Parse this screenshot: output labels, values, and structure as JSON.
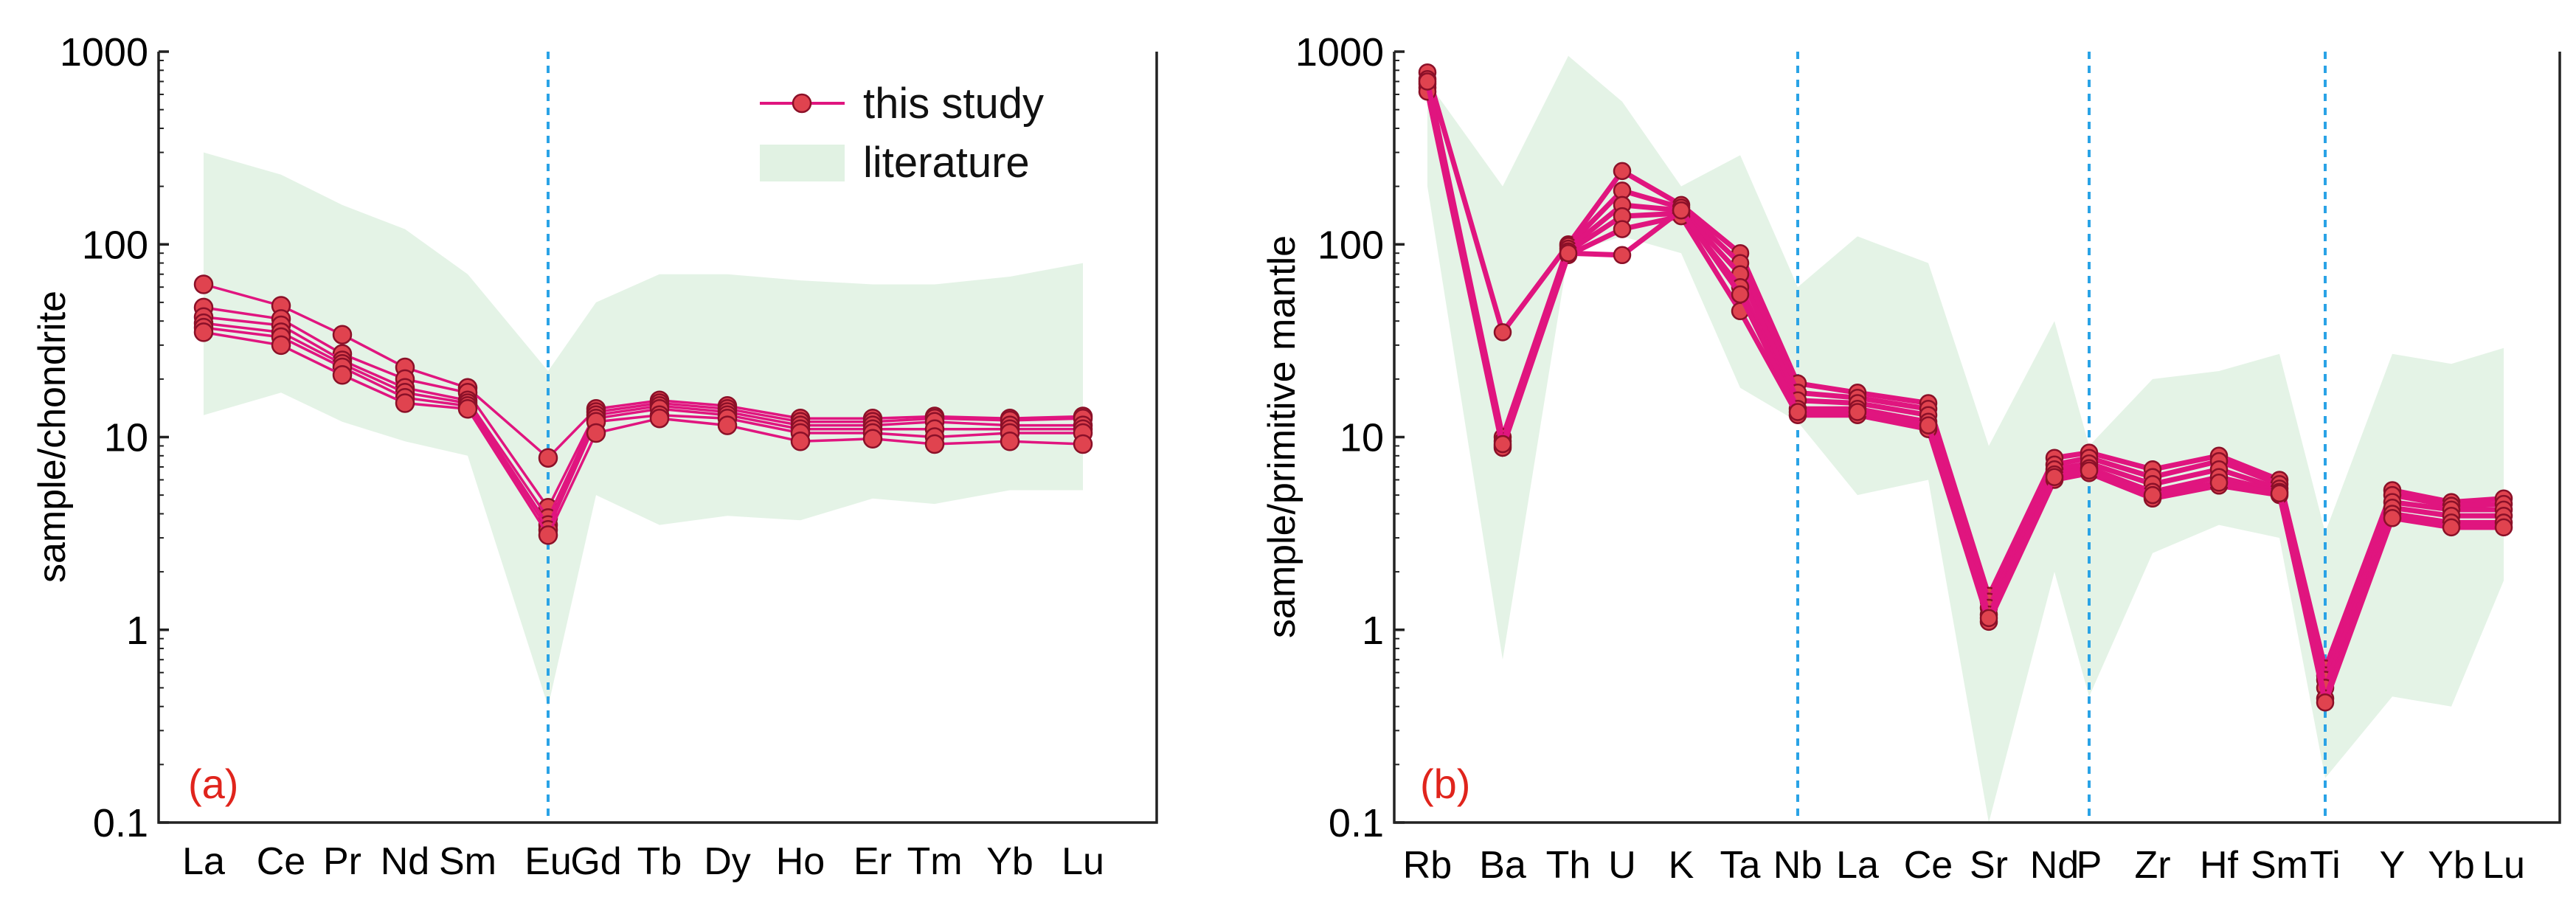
{
  "colors": {
    "series_line": "#e0157f",
    "marker_fill": "#e0434f",
    "band_fill": "#e1f2e3",
    "divider": "#2aa3e6",
    "panel_label": "#e0241c"
  },
  "chart_data": [
    {
      "type": "line",
      "panel_label": "(a)",
      "ylabel": "sample/chondrite",
      "yscale": "log",
      "ylim": [
        0.1,
        1000
      ],
      "yticks": [
        "0.1",
        "1",
        "10",
        "100",
        "1000"
      ],
      "categories": [
        "La",
        "Ce",
        "Pr",
        "Nd",
        "Sm",
        "Eu",
        "Gd",
        "Tb",
        "Dy",
        "Ho",
        "Er",
        "Tm",
        "Yb",
        "Lu"
      ],
      "divider_after": "Eu",
      "legend": {
        "position": "top-right",
        "entries": [
          "this study",
          "literature"
        ]
      },
      "literature_band": {
        "upper": [
          300,
          230,
          160,
          120,
          70,
          22,
          50,
          70,
          70,
          65,
          62,
          62,
          68,
          80
        ],
        "lower": [
          13,
          17,
          12,
          9.5,
          8,
          0.4,
          5,
          3.5,
          3.9,
          3.7,
          4.8,
          4.5,
          5.3,
          5.3
        ]
      },
      "series": [
        {
          "values": [
            62,
            48,
            34,
            23,
            18,
            7.8,
            14,
            15.5,
            14.5,
            12.5,
            12.5,
            12.8,
            12.5,
            12.8
          ]
        },
        {
          "values": [
            47,
            41,
            27,
            20,
            17,
            4.3,
            13.5,
            15,
            14,
            12,
            12,
            12.5,
            12.2,
            12.5
          ]
        },
        {
          "values": [
            42,
            38,
            25,
            18,
            15.5,
            3.8,
            13,
            14.5,
            13.5,
            11.5,
            11.5,
            12,
            11.5,
            11.5
          ]
        },
        {
          "values": [
            39,
            35,
            24,
            17,
            15,
            3.5,
            12.5,
            14,
            13,
            11,
            11,
            11,
            11,
            11
          ]
        },
        {
          "values": [
            37,
            33,
            23,
            16,
            14.5,
            3.3,
            12,
            13,
            12.5,
            10.5,
            10.5,
            10,
            10.5,
            10.5
          ]
        },
        {
          "values": [
            35,
            30,
            21,
            15,
            14,
            3.1,
            10.5,
            12.5,
            11.5,
            9.5,
            9.8,
            9.2,
            9.5,
            9.2
          ]
        }
      ]
    },
    {
      "type": "line",
      "panel_label": "(b)",
      "ylabel": "sample/primitive mantle",
      "yscale": "log",
      "ylim": [
        0.1,
        1000
      ],
      "yticks": [
        "0.1",
        "1",
        "10",
        "100",
        "1000"
      ],
      "categories": [
        "Rb",
        "Ba",
        "Th",
        "U",
        "K",
        "Ta",
        "Nb",
        "La",
        "Ce",
        "Sr",
        "Nd",
        "P",
        "Zr",
        "Hf",
        "Sm",
        "Ti",
        "Y",
        "Yb",
        "Lu"
      ],
      "dividers_at": [
        "Nb",
        "P",
        "Ti"
      ],
      "literature_band": {
        "upper": [
          700,
          200,
          950,
          550,
          200,
          290,
          60,
          110,
          80,
          9,
          40,
          9,
          20,
          22,
          27,
          3.2,
          27,
          24,
          29
        ],
        "lower": [
          200,
          0.7,
          90,
          110,
          90,
          18,
          12,
          5,
          6,
          0.1,
          2,
          0.45,
          2.5,
          3.5,
          3,
          0.17,
          0.45,
          0.4,
          1.8
        ]
      },
      "series": [
        {
          "values": [
            780,
            35,
            100,
            240,
            160,
            90,
            19,
            17,
            15,
            1.5,
            7.8,
            8.3,
            6.8,
            8,
            6,
            0.63,
            5.3,
            4.6,
            4.8
          ]
        },
        {
          "values": [
            720,
            10,
            98,
            190,
            155,
            80,
            17,
            16,
            14,
            1.4,
            7.2,
            7.8,
            6.2,
            7.5,
            5.7,
            0.58,
            5,
            4.4,
            4.5
          ]
        },
        {
          "values": [
            680,
            9.5,
            95,
            160,
            150,
            70,
            15.5,
            15,
            13,
            1.3,
            6.8,
            7.3,
            5.7,
            6.8,
            5.4,
            0.55,
            4.6,
            4.2,
            4.2
          ]
        },
        {
          "values": [
            650,
            9,
            92,
            140,
            145,
            60,
            14,
            14,
            12,
            1.2,
            6.4,
            6.9,
            5.2,
            6.2,
            5.2,
            0.5,
            4.3,
            3.9,
            3.9
          ]
        },
        {
          "values": [
            620,
            8.8,
            88,
            120,
            140,
            45,
            13,
            13,
            11,
            1.1,
            6,
            6.5,
            4.8,
            5.6,
            5,
            0.44,
            4,
            3.6,
            3.6
          ]
        },
        {
          "values": [
            700,
            9.2,
            90,
            88,
            150,
            55,
            13.5,
            13.5,
            11.5,
            1.15,
            6.2,
            6.7,
            5,
            5.8,
            5.1,
            0.42,
            3.8,
            3.4,
            3.4
          ]
        }
      ]
    }
  ]
}
